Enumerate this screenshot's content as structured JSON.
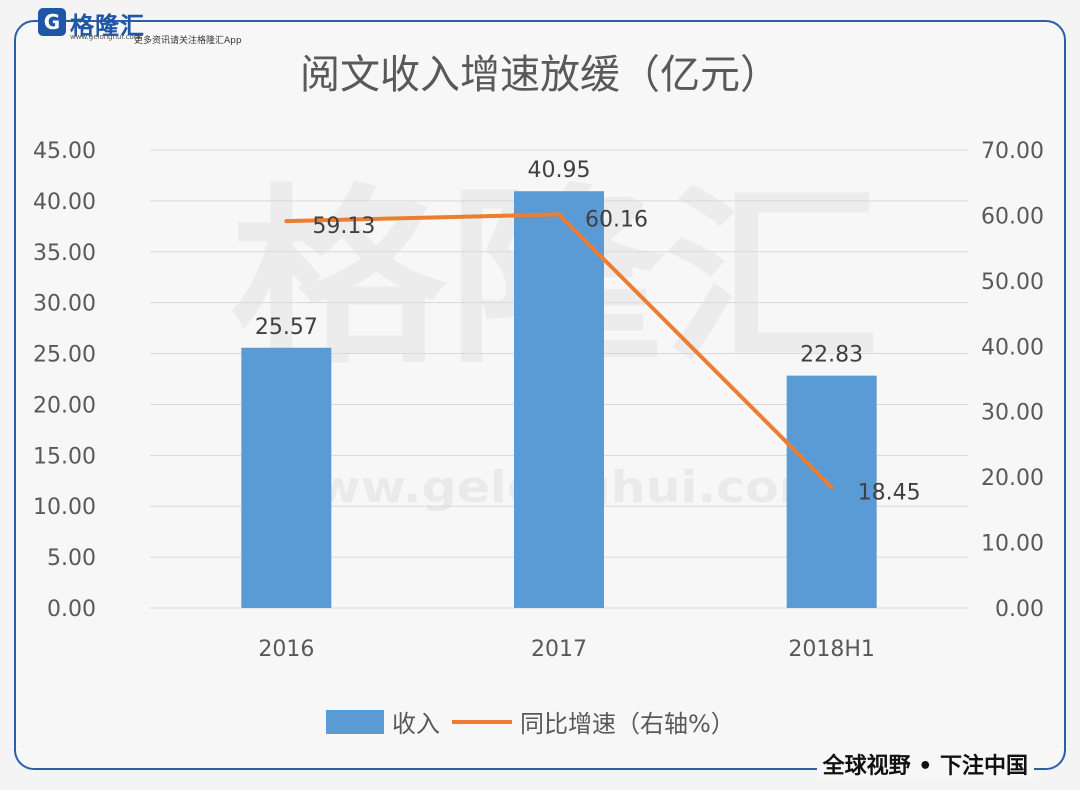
{
  "branding": {
    "logo_letter": "G",
    "logo_name": "格隆汇",
    "logo_url": "www.gelonghui.com",
    "logo_slogan": "更多资讯请关注格隆汇App",
    "watermark_text": "格隆汇",
    "watermark_url": "www.gelonghui.com",
    "footer_slogan": "全球视野 • 下注中国"
  },
  "colors": {
    "bar": "#5b9bd5",
    "line": "#ed7d31",
    "frame": "#2a5fa8",
    "grid": "#d9d9d9",
    "text": "#595959"
  },
  "chart_data": {
    "type": "bar",
    "title": "阅文收入增速放缓（亿元）",
    "categories": [
      "2016",
      "2017",
      "2018H1"
    ],
    "series": [
      {
        "name": "收入",
        "type": "bar",
        "axis": "left",
        "values": [
          25.57,
          40.95,
          22.83
        ],
        "labels": [
          "25.57",
          "40.95",
          "22.83"
        ]
      },
      {
        "name": "同比增速（右轴%）",
        "type": "line",
        "axis": "right",
        "values": [
          59.13,
          60.16,
          18.45
        ],
        "labels": [
          "59.13",
          "60.16",
          "18.45"
        ]
      }
    ],
    "y_left": {
      "min": 0,
      "max": 45,
      "step": 5,
      "ticks": [
        "0.00",
        "5.00",
        "10.00",
        "15.00",
        "20.00",
        "25.00",
        "30.00",
        "35.00",
        "40.00",
        "45.00"
      ]
    },
    "y_right": {
      "min": 0,
      "max": 70,
      "step": 10,
      "ticks": [
        "0.00",
        "10.00",
        "20.00",
        "30.00",
        "40.00",
        "50.00",
        "60.00",
        "70.00"
      ]
    },
    "grid": true,
    "legend": "bottom"
  }
}
